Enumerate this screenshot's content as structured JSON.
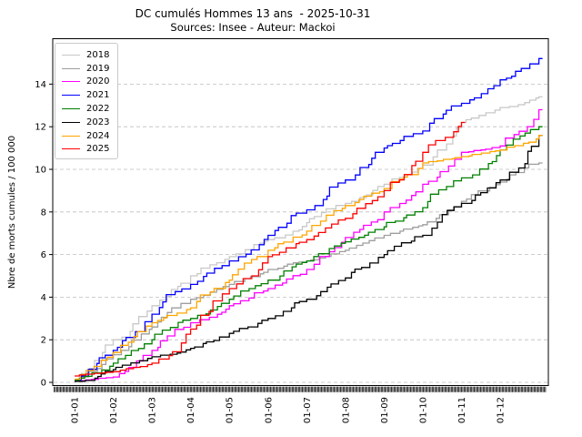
{
  "title": "DC cumulés Hommes 13 ans  - 2025-10-31",
  "subtitle": "Sources: Insee - Auteur: Mackoi",
  "chart_data": {
    "type": "line",
    "step": true,
    "title": "DC cumulés Hommes 13 ans  - 2025-10-31",
    "subtitle": "Sources: Insee - Auteur: Mackoi",
    "xlabel": "",
    "ylabel": "Nbre de morts cumules / 100 000",
    "y_ticks": [
      0,
      2,
      4,
      6,
      8,
      10,
      12,
      14
    ],
    "ylim": [
      -0.3,
      16.1
    ],
    "x_tick_labels": [
      "01-01",
      "01-02",
      "01-03",
      "01-04",
      "01-05",
      "01-06",
      "01-07",
      "01-08",
      "01-09",
      "01-10",
      "01-11",
      "01-12"
    ],
    "x_unit": "month-start index (0 = Jan 1 ... 11 = Dec 1, 12 = Dec 31)",
    "grid": "horizontal-dashed",
    "legend_position": "upper-left",
    "legend_entries": [
      "2018",
      "2019",
      "2020",
      "2021",
      "2022",
      "2023",
      "2024",
      "2025"
    ],
    "series": [
      {
        "name": "2018",
        "color": "#c8c8c8",
        "values": [
          0.15,
          2.0,
          3.6,
          5.0,
          5.9,
          6.7,
          7.5,
          8.4,
          9.3,
          10.2,
          12.2,
          12.9,
          13.4
        ]
      },
      {
        "name": "2019",
        "color": "#9e9e9e",
        "values": [
          0.1,
          1.3,
          2.6,
          3.9,
          4.6,
          5.3,
          5.7,
          6.2,
          6.9,
          7.4,
          8.5,
          9.4,
          10.3
        ]
      },
      {
        "name": "2020",
        "color": "#ff00ff",
        "values": [
          0.05,
          0.25,
          1.5,
          2.8,
          3.6,
          4.4,
          5.3,
          6.8,
          8.0,
          9.3,
          10.8,
          11.1,
          12.8
        ]
      },
      {
        "name": "2021",
        "color": "#0000ff",
        "values": [
          0.1,
          1.5,
          3.2,
          4.6,
          5.7,
          6.9,
          8.1,
          9.5,
          11.0,
          11.8,
          13.1,
          14.2,
          15.2
        ]
      },
      {
        "name": "2022",
        "color": "#008000",
        "values": [
          0.1,
          0.9,
          2.0,
          3.0,
          3.9,
          4.8,
          5.7,
          6.6,
          7.3,
          8.2,
          9.6,
          10.9,
          12.0
        ]
      },
      {
        "name": "2023",
        "color": "#000000",
        "values": [
          0.05,
          0.6,
          1.2,
          1.6,
          2.3,
          3.0,
          3.9,
          4.9,
          6.0,
          6.9,
          8.4,
          9.5,
          11.6
        ]
      },
      {
        "name": "2024",
        "color": "#ffa500",
        "values": [
          0.15,
          1.4,
          2.8,
          3.5,
          4.8,
          6.2,
          7.1,
          8.3,
          9.1,
          10.3,
          10.6,
          10.9,
          11.6
        ]
      },
      {
        "name": "2025",
        "color": "#ff0000",
        "values": [
          0.3,
          0.5,
          0.9,
          2.5,
          4.4,
          5.9,
          6.7,
          7.7,
          9.0,
          10.8,
          12.2
        ],
        "ends_at": "2025-10-31"
      }
    ]
  }
}
